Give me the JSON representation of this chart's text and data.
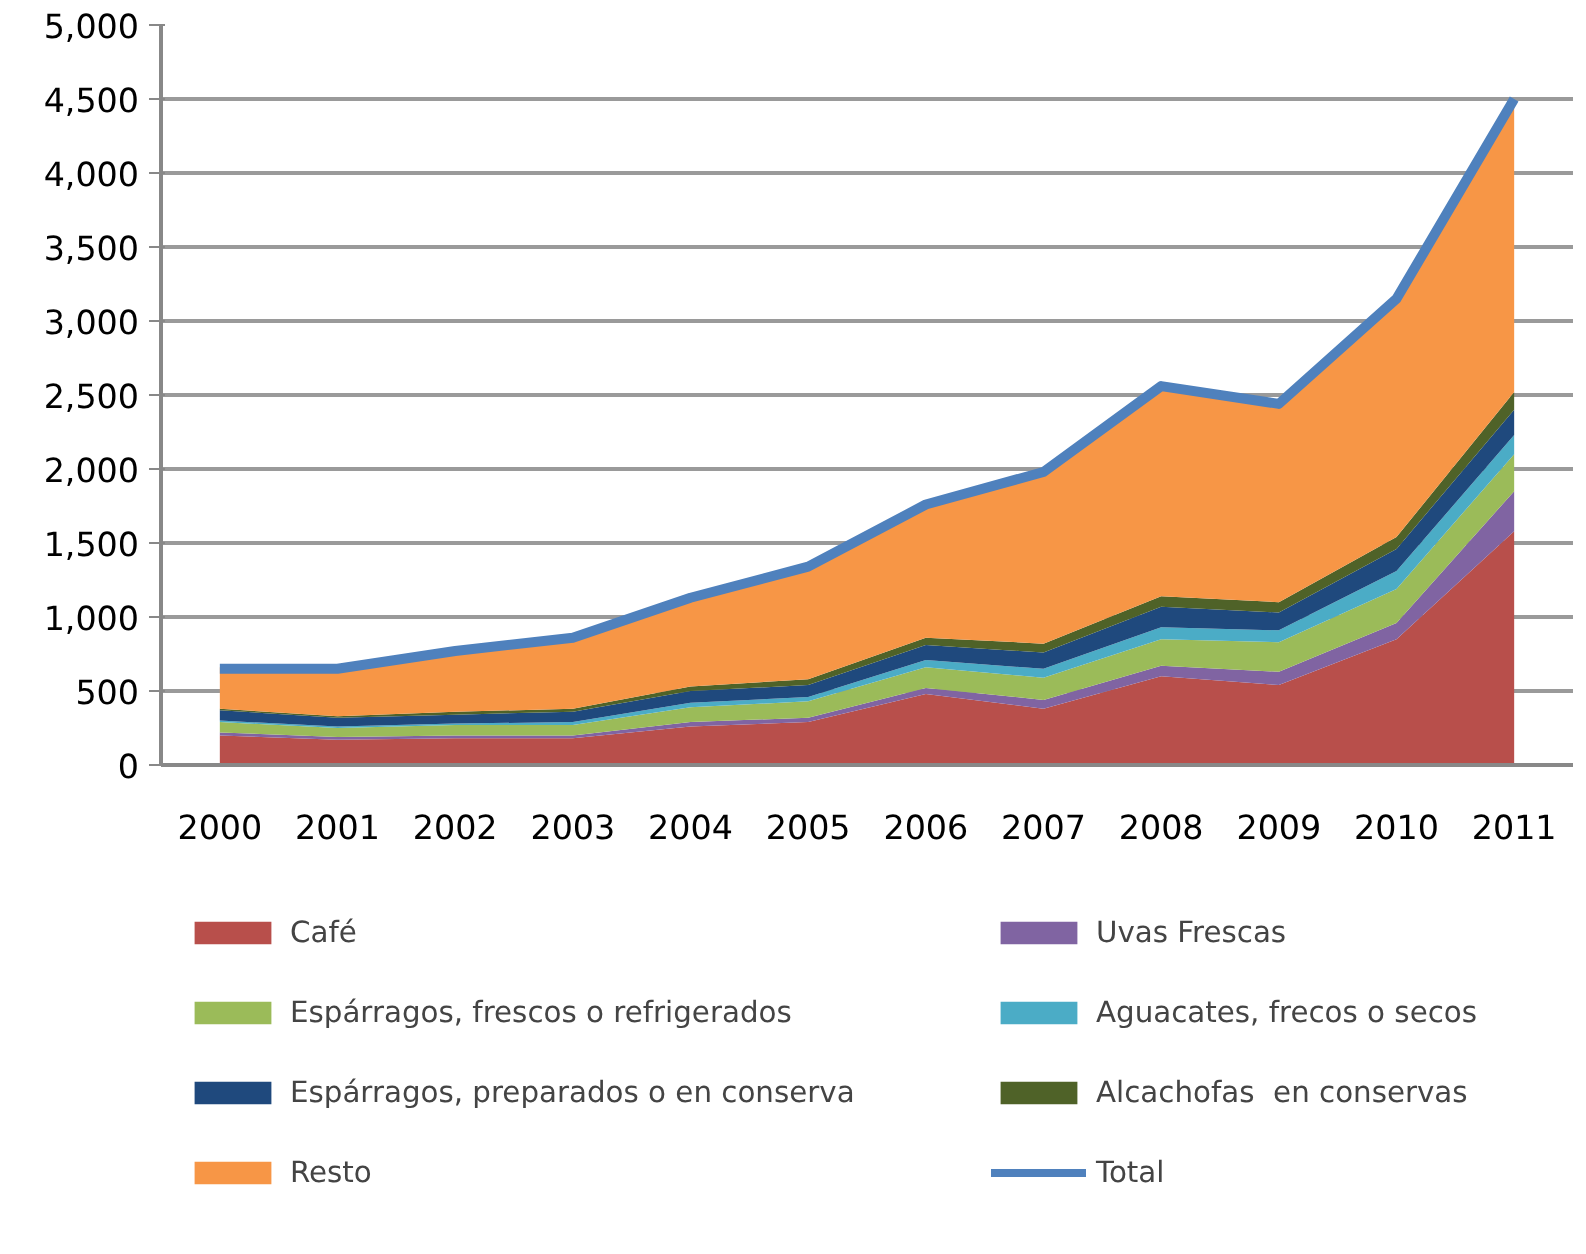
{
  "chart_data": {
    "type": "area",
    "stacked": true,
    "categories": [
      "2000",
      "2001",
      "2002",
      "2003",
      "2004",
      "2005",
      "2006",
      "2007",
      "2008",
      "2009",
      "2010",
      "2011"
    ],
    "ylim": [
      0,
      5000
    ],
    "yticks": [
      {
        "value": 0,
        "label": "0"
      },
      {
        "value": 500,
        "label": "500"
      },
      {
        "value": 1000,
        "label": "1,000"
      },
      {
        "value": 1500,
        "label": "1,500"
      },
      {
        "value": 2000,
        "label": "2,000"
      },
      {
        "value": 2500,
        "label": "2,500"
      },
      {
        "value": 3000,
        "label": "3,000"
      },
      {
        "value": 3500,
        "label": "3,500"
      },
      {
        "value": 4000,
        "label": "4,000"
      },
      {
        "value": 4500,
        "label": "4,500"
      },
      {
        "value": 5000,
        "label": "5,000"
      }
    ],
    "grid": "y",
    "legend": "bottom",
    "series": [
      {
        "name": "Café",
        "color": "#b84f4b",
        "values": [
          200,
          170,
          180,
          180,
          260,
          290,
          480,
          380,
          600,
          540,
          850,
          1580
        ]
      },
      {
        "name": "Uvas Frescas",
        "color": "#8064a2",
        "values": [
          20,
          20,
          20,
          20,
          30,
          30,
          40,
          60,
          70,
          90,
          110,
          270
        ]
      },
      {
        "name": "Espárragos, frescos o refrigerados",
        "color": "#9bbb59",
        "values": [
          70,
          60,
          70,
          70,
          100,
          110,
          140,
          150,
          180,
          200,
          230,
          250
        ]
      },
      {
        "name": "Aguacates, frecos o secos",
        "color": "#4bacc6",
        "values": [
          10,
          10,
          10,
          20,
          30,
          30,
          50,
          60,
          80,
          80,
          120,
          130
        ]
      },
      {
        "name": "Espárragos, preparados o en conserva",
        "color": "#1f497d",
        "values": [
          70,
          60,
          60,
          70,
          80,
          80,
          100,
          110,
          140,
          120,
          150,
          170
        ]
      },
      {
        "name": "Alcachofas  en conservas",
        "color": "#4f6228",
        "values": [
          10,
          10,
          20,
          20,
          30,
          40,
          50,
          60,
          70,
          70,
          80,
          120
        ]
      },
      {
        "name": "Resto",
        "color": "#f79646",
        "values": [
          280,
          330,
          420,
          490,
          610,
          760,
          900,
          1160,
          1420,
          1340,
          1610,
          1980
        ]
      },
      {
        "name": "Total",
        "type": "line",
        "color": "#4f81bd",
        "values": [
          650,
          650,
          770,
          860,
          1130,
          1340,
          1760,
          1980,
          2560,
          2440,
          3150,
          4500
        ]
      }
    ]
  }
}
